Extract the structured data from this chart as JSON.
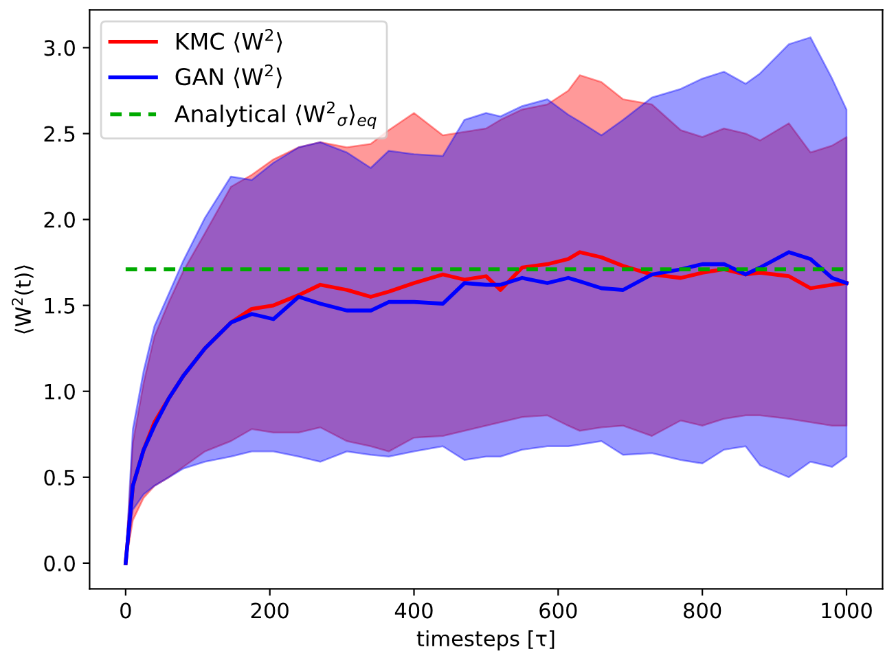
{
  "chart_data": {
    "type": "line",
    "xlabel": "timesteps [τ]",
    "ylabel": "⟨W$^{2}$(t)⟩",
    "xlim": [
      -50,
      1050
    ],
    "ylim": [
      -0.15,
      3.22
    ],
    "xticks": [
      0,
      200,
      400,
      600,
      800,
      1000
    ],
    "yticks": [
      {
        "value": 0,
        "label": "0.0"
      },
      {
        "value": 0.5,
        "label": "0.5"
      },
      {
        "value": 1,
        "label": "1.0"
      },
      {
        "value": 1.5,
        "label": "1.5"
      },
      {
        "value": 2,
        "label": "2.0"
      },
      {
        "value": 2.5,
        "label": "2.5"
      },
      {
        "value": 3,
        "label": "3.0"
      }
    ],
    "grid": false,
    "legend": "top left",
    "line_style": "solid",
    "marker": "none",
    "series": [
      {
        "name": "KMC ⟨W$^{2}$⟩",
        "color": "#ff0000",
        "x": [
          0,
          10,
          25,
          40,
          60,
          80,
          110,
          146,
          175,
          205,
          240,
          270,
          307,
          340,
          365,
          400,
          440,
          470,
          500,
          520,
          550,
          585,
          614,
          630,
          660,
          690,
          730,
          770,
          800,
          830,
          860,
          880,
          920,
          950,
          980,
          1000
        ],
        "values": [
          0,
          0.45,
          0.66,
          0.82,
          0.96,
          1.09,
          1.25,
          1.4,
          1.48,
          1.5,
          1.56,
          1.62,
          1.59,
          1.55,
          1.58,
          1.63,
          1.68,
          1.65,
          1.67,
          1.59,
          1.72,
          1.74,
          1.77,
          1.81,
          1.78,
          1.73,
          1.68,
          1.66,
          1.69,
          1.71,
          1.68,
          1.69,
          1.67,
          1.6,
          1.62,
          1.63
        ],
        "upper": [
          0,
          0.7,
          1.05,
          1.32,
          1.52,
          1.7,
          1.92,
          2.19,
          2.26,
          2.35,
          2.42,
          2.45,
          2.42,
          2.44,
          2.52,
          2.62,
          2.49,
          2.51,
          2.53,
          2.58,
          2.64,
          2.67,
          2.75,
          2.84,
          2.8,
          2.7,
          2.67,
          2.52,
          2.48,
          2.53,
          2.5,
          2.46,
          2.56,
          2.39,
          2.43,
          2.48
        ],
        "lower": [
          0,
          0.25,
          0.38,
          0.45,
          0.5,
          0.56,
          0.65,
          0.71,
          0.78,
          0.76,
          0.76,
          0.79,
          0.71,
          0.68,
          0.65,
          0.73,
          0.74,
          0.77,
          0.8,
          0.82,
          0.85,
          0.86,
          0.8,
          0.77,
          0.79,
          0.8,
          0.74,
          0.83,
          0.8,
          0.84,
          0.86,
          0.86,
          0.84,
          0.82,
          0.8,
          0.8
        ]
      },
      {
        "name": "GAN ⟨W$^{2}$⟩",
        "color": "#0000ff",
        "x": [
          0,
          10,
          25,
          40,
          60,
          80,
          110,
          146,
          175,
          205,
          240,
          270,
          307,
          340,
          365,
          400,
          440,
          470,
          500,
          520,
          550,
          585,
          614,
          630,
          660,
          690,
          730,
          770,
          800,
          830,
          860,
          880,
          920,
          950,
          980,
          1000
        ],
        "values": [
          0,
          0.45,
          0.66,
          0.8,
          0.96,
          1.09,
          1.25,
          1.4,
          1.45,
          1.42,
          1.55,
          1.51,
          1.47,
          1.47,
          1.52,
          1.52,
          1.51,
          1.63,
          1.62,
          1.62,
          1.66,
          1.63,
          1.66,
          1.64,
          1.6,
          1.59,
          1.68,
          1.71,
          1.74,
          1.74,
          1.68,
          1.72,
          1.81,
          1.77,
          1.66,
          1.63
        ],
        "upper": [
          0,
          0.78,
          1.12,
          1.38,
          1.57,
          1.76,
          2.01,
          2.25,
          2.23,
          2.33,
          2.42,
          2.45,
          2.39,
          2.3,
          2.4,
          2.38,
          2.37,
          2.58,
          2.62,
          2.6,
          2.66,
          2.7,
          2.61,
          2.57,
          2.49,
          2.58,
          2.71,
          2.76,
          2.82,
          2.86,
          2.79,
          2.85,
          3.02,
          3.06,
          2.82,
          2.64
        ],
        "lower": [
          0,
          0.31,
          0.4,
          0.45,
          0.5,
          0.55,
          0.59,
          0.62,
          0.65,
          0.65,
          0.62,
          0.59,
          0.65,
          0.63,
          0.62,
          0.65,
          0.68,
          0.6,
          0.62,
          0.62,
          0.66,
          0.68,
          0.68,
          0.69,
          0.71,
          0.63,
          0.64,
          0.6,
          0.58,
          0.66,
          0.68,
          0.57,
          0.5,
          0.59,
          0.56,
          0.62
        ]
      },
      {
        "name": "Analytical ⟨W$^{2}$$_{σ}$⟩$_{eq}$",
        "color": "#00aa00",
        "line_style": "dashed",
        "x": [
          0,
          1000
        ],
        "values": [
          1.71,
          1.71
        ]
      }
    ]
  }
}
